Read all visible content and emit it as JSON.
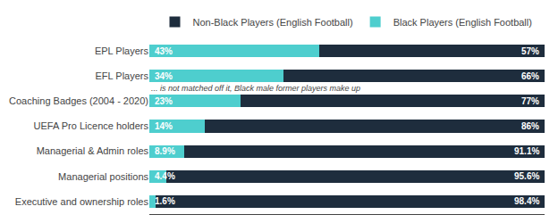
{
  "chart_data": {
    "type": "bar",
    "orientation": "horizontal",
    "stacked": true,
    "categories": [
      "EPL Players",
      "EFL Players",
      "Coaching Badges (2004 - 2020)",
      "UEFA Pro Licence holders",
      "Managerial & Admin roles",
      "Managerial positions",
      "Executive and ownership roles"
    ],
    "series": [
      {
        "name": "Black Players (English Football)",
        "color": "#4ecece",
        "values": [
          43,
          34,
          23,
          14,
          8.9,
          4.4,
          1.6
        ],
        "value_labels": [
          "43%",
          "34%",
          "23%",
          "14%",
          "8.9%",
          "4.4%",
          "1.6%"
        ]
      },
      {
        "name": "Non-Black Players (English Football)",
        "color": "#1e2d3d",
        "values": [
          57,
          66,
          77,
          86,
          91.1,
          95.6,
          98.4
        ],
        "value_labels": [
          "57%",
          "66%",
          "77%",
          "86%",
          "91.1%",
          "95.6%",
          "98.4%"
        ]
      }
    ],
    "annotations": [
      "... is not matched off it, Black male former players make up"
    ],
    "xlim": [
      0,
      100
    ],
    "data_labels": true,
    "tick_labels": "y",
    "grid": false,
    "legend": "top"
  }
}
